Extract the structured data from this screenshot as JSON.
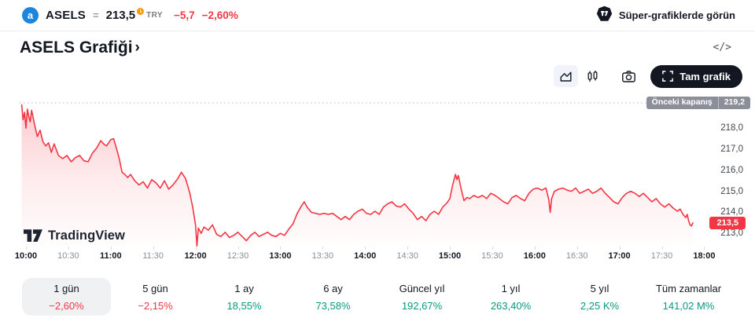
{
  "header": {
    "symbol": "ASELS",
    "separator": "=",
    "price": "213,5",
    "currency": "TRY",
    "change": "−5,7",
    "change_percent": "−2,60%",
    "cta": "Süper-grafiklerde görün"
  },
  "title": {
    "text": "ASELS Grafiği",
    "chevron": "›",
    "embed_icon": "</>"
  },
  "toolbar": {
    "fullscreen_label": "Tam grafik"
  },
  "chart": {
    "prev_close_label": "Önceki kapanış",
    "prev_close_value": "219,2",
    "last_price_label": "213,5",
    "watermark": "TradingView"
  },
  "chart_data": {
    "type": "area",
    "symbol": "ASELS",
    "currency": "TRY",
    "last_price": 213.5,
    "previous_close": 219.2,
    "change": -5.7,
    "change_percent": -2.6,
    "session_low": 212.4,
    "session_high": 219.1,
    "grid": false,
    "line_color": "#F23645",
    "x_ticks": [
      "10:00",
      "10:30",
      "11:00",
      "11:30",
      "12:00",
      "12:30",
      "13:00",
      "13:30",
      "14:00",
      "14:30",
      "15:00",
      "15:30",
      "16:00",
      "16:30",
      "17:00",
      "17:30",
      "18:00"
    ],
    "y_ticks": [
      {
        "value": 218.0,
        "label": "218,0"
      },
      {
        "value": 217.0,
        "label": "217,0"
      },
      {
        "value": 216.0,
        "label": "216,0"
      },
      {
        "value": 215.0,
        "label": "215,0"
      },
      {
        "value": 214.0,
        "label": "214,0"
      },
      {
        "value": 213.0,
        "label": "213,0"
      }
    ],
    "ylim": [
      212.3,
      219.4
    ],
    "series_units": "minutes_from_10:00, price_TRY",
    "series": [
      [
        -3,
        219.1
      ],
      [
        -2,
        218.4
      ],
      [
        -1,
        218.75
      ],
      [
        0,
        218.0
      ],
      [
        1,
        218.9
      ],
      [
        2,
        218.55
      ],
      [
        3,
        218.3
      ],
      [
        4,
        218.85
      ],
      [
        6,
        218.2
      ],
      [
        8,
        217.6
      ],
      [
        10,
        217.9
      ],
      [
        12,
        217.35
      ],
      [
        14,
        217.15
      ],
      [
        16,
        217.3
      ],
      [
        18,
        216.85
      ],
      [
        20,
        217.25
      ],
      [
        23,
        216.7
      ],
      [
        26,
        216.55
      ],
      [
        29,
        216.7
      ],
      [
        32,
        216.4
      ],
      [
        35,
        216.6
      ],
      [
        38,
        216.7
      ],
      [
        41,
        216.45
      ],
      [
        44,
        216.4
      ],
      [
        47,
        216.8
      ],
      [
        50,
        217.05
      ],
      [
        53,
        217.4
      ],
      [
        55,
        217.25
      ],
      [
        57,
        217.15
      ],
      [
        60,
        217.45
      ],
      [
        62,
        217.5
      ],
      [
        64,
        217.05
      ],
      [
        66,
        216.55
      ],
      [
        68,
        215.9
      ],
      [
        70,
        215.8
      ],
      [
        72,
        215.65
      ],
      [
        74,
        215.8
      ],
      [
        77,
        215.5
      ],
      [
        80,
        215.3
      ],
      [
        83,
        215.45
      ],
      [
        86,
        215.15
      ],
      [
        89,
        215.55
      ],
      [
        92,
        215.4
      ],
      [
        95,
        215.15
      ],
      [
        98,
        215.5
      ],
      [
        101,
        215.1
      ],
      [
        104,
        215.3
      ],
      [
        107,
        215.55
      ],
      [
        110,
        215.9
      ],
      [
        113,
        215.6
      ],
      [
        116,
        214.9
      ],
      [
        118,
        214.25
      ],
      [
        120,
        213.4
      ],
      [
        121,
        212.4
      ],
      [
        122,
        213.25
      ],
      [
        124,
        213.0
      ],
      [
        126,
        213.3
      ],
      [
        129,
        213.15
      ],
      [
        132,
        213.4
      ],
      [
        135,
        212.95
      ],
      [
        138,
        212.85
      ],
      [
        141,
        213.05
      ],
      [
        144,
        212.8
      ],
      [
        147,
        212.9
      ],
      [
        150,
        213.05
      ],
      [
        153,
        212.85
      ],
      [
        156,
        212.65
      ],
      [
        159,
        212.9
      ],
      [
        162,
        213.05
      ],
      [
        165,
        212.85
      ],
      [
        168,
        212.95
      ],
      [
        171,
        213.05
      ],
      [
        174,
        212.9
      ],
      [
        177,
        212.85
      ],
      [
        180,
        213.0
      ],
      [
        183,
        212.9
      ],
      [
        186,
        213.2
      ],
      [
        189,
        213.45
      ],
      [
        192,
        213.95
      ],
      [
        195,
        214.3
      ],
      [
        197,
        214.5
      ],
      [
        199,
        214.25
      ],
      [
        202,
        214.0
      ],
      [
        205,
        213.95
      ],
      [
        208,
        213.9
      ],
      [
        211,
        213.95
      ],
      [
        214,
        213.9
      ],
      [
        217,
        213.95
      ],
      [
        220,
        213.8
      ],
      [
        223,
        213.65
      ],
      [
        226,
        213.8
      ],
      [
        229,
        213.65
      ],
      [
        232,
        213.9
      ],
      [
        235,
        214.05
      ],
      [
        238,
        214.15
      ],
      [
        241,
        213.95
      ],
      [
        244,
        213.9
      ],
      [
        247,
        214.05
      ],
      [
        250,
        213.9
      ],
      [
        253,
        214.25
      ],
      [
        256,
        214.4
      ],
      [
        259,
        214.5
      ],
      [
        262,
        214.3
      ],
      [
        265,
        214.25
      ],
      [
        268,
        214.4
      ],
      [
        271,
        214.15
      ],
      [
        274,
        213.95
      ],
      [
        277,
        213.65
      ],
      [
        280,
        213.8
      ],
      [
        283,
        213.6
      ],
      [
        286,
        213.9
      ],
      [
        289,
        214.05
      ],
      [
        292,
        213.9
      ],
      [
        295,
        214.25
      ],
      [
        298,
        214.45
      ],
      [
        300,
        214.65
      ],
      [
        302,
        215.3
      ],
      [
        304,
        215.8
      ],
      [
        305,
        215.55
      ],
      [
        306,
        215.75
      ],
      [
        308,
        215.1
      ],
      [
        310,
        214.55
      ],
      [
        312,
        214.7
      ],
      [
        314,
        214.65
      ],
      [
        317,
        214.8
      ],
      [
        320,
        214.7
      ],
      [
        323,
        214.8
      ],
      [
        326,
        214.65
      ],
      [
        329,
        214.9
      ],
      [
        332,
        214.8
      ],
      [
        335,
        214.65
      ],
      [
        338,
        214.5
      ],
      [
        341,
        214.4
      ],
      [
        344,
        214.7
      ],
      [
        347,
        214.8
      ],
      [
        350,
        214.65
      ],
      [
        353,
        214.55
      ],
      [
        356,
        214.9
      ],
      [
        359,
        215.1
      ],
      [
        362,
        215.15
      ],
      [
        365,
        215.05
      ],
      [
        368,
        215.15
      ],
      [
        370,
        214.6
      ],
      [
        371,
        214.0
      ],
      [
        372,
        214.65
      ],
      [
        374,
        215.0
      ],
      [
        377,
        215.1
      ],
      [
        380,
        215.15
      ],
      [
        383,
        215.05
      ],
      [
        386,
        215.0
      ],
      [
        389,
        215.15
      ],
      [
        392,
        214.9
      ],
      [
        395,
        215.0
      ],
      [
        398,
        215.1
      ],
      [
        401,
        214.9
      ],
      [
        404,
        215.0
      ],
      [
        407,
        215.15
      ],
      [
        410,
        214.9
      ],
      [
        413,
        214.7
      ],
      [
        416,
        214.5
      ],
      [
        419,
        214.4
      ],
      [
        422,
        214.7
      ],
      [
        425,
        214.9
      ],
      [
        428,
        215.0
      ],
      [
        431,
        214.9
      ],
      [
        434,
        214.75
      ],
      [
        437,
        214.9
      ],
      [
        440,
        214.7
      ],
      [
        443,
        214.5
      ],
      [
        446,
        214.65
      ],
      [
        449,
        214.4
      ],
      [
        452,
        214.25
      ],
      [
        455,
        214.4
      ],
      [
        458,
        214.2
      ],
      [
        461,
        214.05
      ],
      [
        463,
        214.15
      ],
      [
        465,
        213.9
      ],
      [
        467,
        213.75
      ],
      [
        468,
        213.9
      ],
      [
        469,
        213.6
      ],
      [
        470,
        213.4
      ],
      [
        471,
        213.35
      ],
      [
        472,
        213.5
      ]
    ]
  },
  "ranges": [
    {
      "label": "1 gün",
      "value": "−2,60%",
      "direction": "down",
      "selected": true
    },
    {
      "label": "5 gün",
      "value": "−2,15%",
      "direction": "down",
      "selected": false
    },
    {
      "label": "1 ay",
      "value": "18,55%",
      "direction": "up",
      "selected": false
    },
    {
      "label": "6 ay",
      "value": "73,58%",
      "direction": "up",
      "selected": false
    },
    {
      "label": "Güncel yıl",
      "value": "192,67%",
      "direction": "up",
      "selected": false
    },
    {
      "label": "1 yıl",
      "value": "263,40%",
      "direction": "up",
      "selected": false
    },
    {
      "label": "5 yıl",
      "value": "2,25 K%",
      "direction": "up",
      "selected": false
    },
    {
      "label": "Tüm zamanlar",
      "value": "141,02 M%",
      "direction": "up",
      "selected": false
    }
  ],
  "colors": {
    "down": "#F23645",
    "up": "#089981",
    "text": "#131722",
    "muted": "#787B86",
    "badge_gray": "#8B8F9A",
    "logo_blue": "#1E85DD",
    "clock_orange": "#FF9800"
  }
}
